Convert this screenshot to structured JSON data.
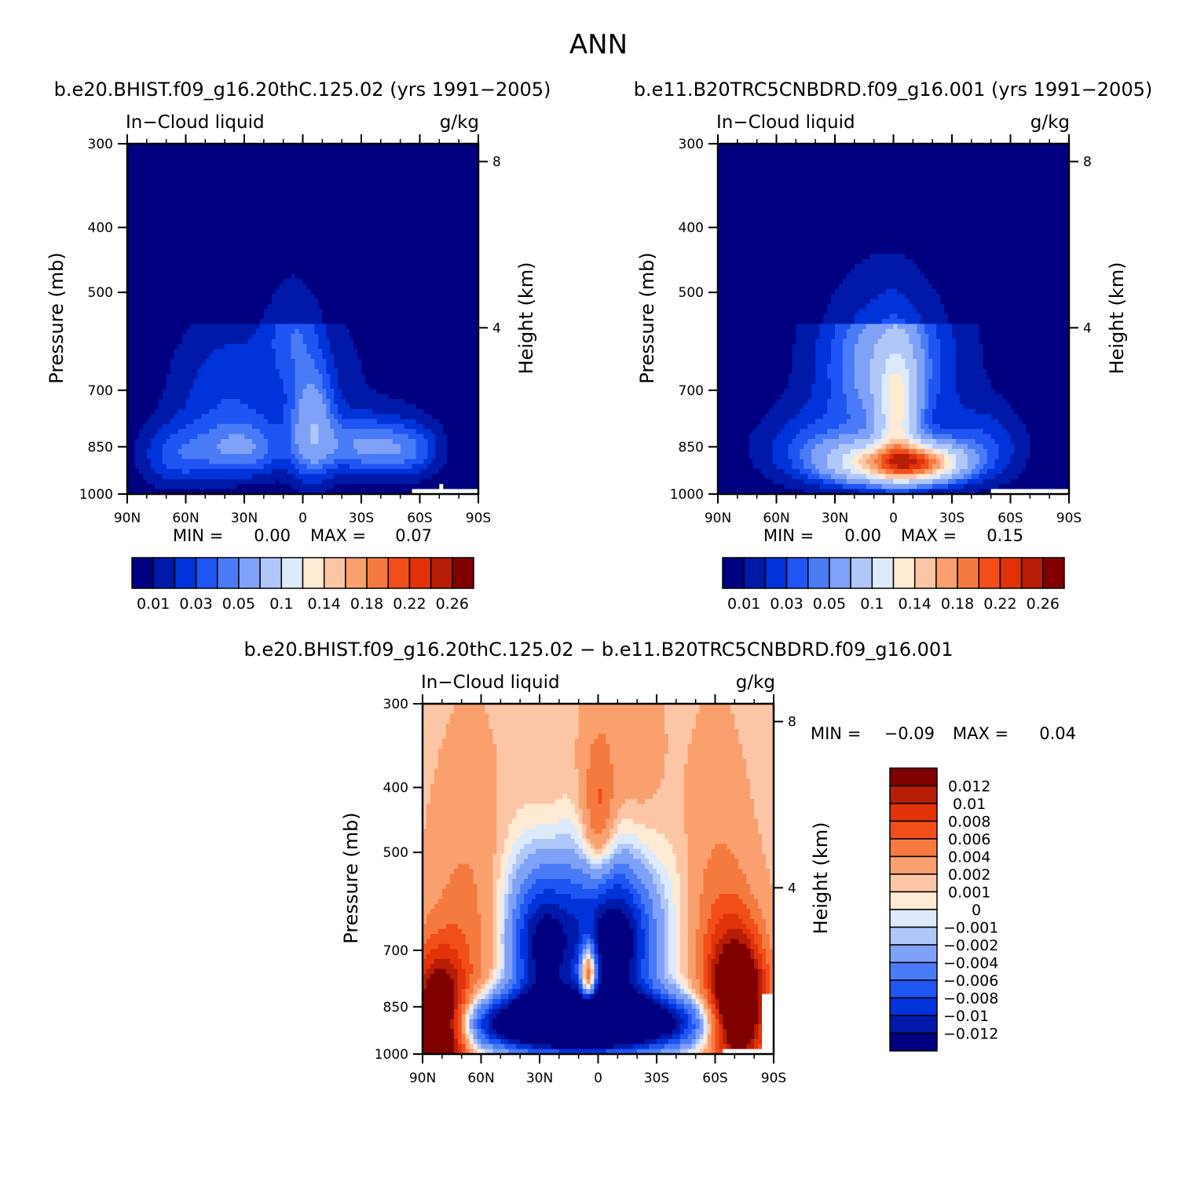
{
  "figure_title": "ANN",
  "colors": {
    "sequential": [
      "#000080",
      "#0019A8",
      "#0033D9",
      "#1F55F2",
      "#4A7BF7",
      "#7FA1F7",
      "#B0C7F9",
      "#DCEAFB",
      "#FFEAD4",
      "#FCC6A6",
      "#F9A06E",
      "#F57A3F",
      "#F24E1A",
      "#E1320A",
      "#B51E05",
      "#800000"
    ],
    "diverging": [
      "#000080",
      "#0019A8",
      "#0033D9",
      "#1F55F2",
      "#4A7BF7",
      "#7FA1F7",
      "#B0C7F9",
      "#DCEAFB",
      "#FFEAD4",
      "#FCC6A6",
      "#F9A06E",
      "#F57A3F",
      "#F24E1A",
      "#E1320A",
      "#B51E05",
      "#800000"
    ]
  },
  "chart_data": [
    {
      "type": "contour",
      "title": "b.e20.BHIST.f09_g16.20thC.125.02 (yrs 1991−2005)",
      "left_string": "In−Cloud liquid",
      "right_string": "g/kg",
      "ylabel": "Pressure (mb)",
      "ylabel_right": "Height (km)",
      "y_ticks": [
        "300",
        "400",
        "500",
        "700",
        "850",
        "1000"
      ],
      "y_tick_values": [
        300,
        400,
        500,
        700,
        850,
        1000
      ],
      "right_ticks": [
        "8",
        "4"
      ],
      "right_tick_values": [
        8,
        4
      ],
      "x_ticks": [
        "90N",
        "60N",
        "30N",
        "0",
        "30S",
        "60S",
        "90S"
      ],
      "x_tick_values": [
        90,
        60,
        30,
        0,
        -30,
        -60,
        -90
      ],
      "ylim": [
        300,
        1000
      ],
      "xlim": [
        90,
        -90
      ],
      "min_label": "MIN =",
      "min_value": "0.00",
      "max_label": "MAX =",
      "max_value": "0.07",
      "colorbar_labels": [
        "0.01",
        "0.03",
        "0.05",
        "0.1",
        "0.14",
        "0.18",
        "0.22",
        "0.26"
      ],
      "contour_levels": [
        0.005,
        0.01,
        0.02,
        0.03,
        0.04,
        0.05,
        0.07,
        0.1,
        0.12,
        0.14,
        0.16,
        0.18,
        0.2,
        0.22,
        0.24,
        0.26
      ]
    },
    {
      "type": "contour",
      "title": "b.e11.B20TRC5CNBDRD.f09_g16.001 (yrs 1991−2005)",
      "left_string": "In−Cloud liquid",
      "right_string": "g/kg",
      "ylabel": "Pressure (mb)",
      "ylabel_right": "Height (km)",
      "y_ticks": [
        "300",
        "400",
        "500",
        "700",
        "850",
        "1000"
      ],
      "y_tick_values": [
        300,
        400,
        500,
        700,
        850,
        1000
      ],
      "right_ticks": [
        "8",
        "4"
      ],
      "right_tick_values": [
        8,
        4
      ],
      "x_ticks": [
        "90N",
        "60N",
        "30N",
        "0",
        "30S",
        "60S",
        "90S"
      ],
      "x_tick_values": [
        90,
        60,
        30,
        0,
        -30,
        -60,
        -90
      ],
      "ylim": [
        300,
        1000
      ],
      "xlim": [
        90,
        -90
      ],
      "min_label": "MIN =",
      "min_value": "0.00",
      "max_label": "MAX =",
      "max_value": "0.15",
      "colorbar_labels": [
        "0.01",
        "0.03",
        "0.05",
        "0.1",
        "0.14",
        "0.18",
        "0.22",
        "0.26"
      ],
      "contour_levels": [
        0.005,
        0.01,
        0.02,
        0.03,
        0.04,
        0.05,
        0.07,
        0.1,
        0.12,
        0.14,
        0.16,
        0.18,
        0.2,
        0.22,
        0.24,
        0.26
      ]
    },
    {
      "type": "contour",
      "title": "b.e20.BHIST.f09_g16.20thC.125.02 − b.e11.B20TRC5CNBDRD.f09_g16.001",
      "left_string": "In−Cloud liquid",
      "right_string": "g/kg",
      "ylabel": "Pressure (mb)",
      "ylabel_right": "Height (km)",
      "y_ticks": [
        "300",
        "400",
        "500",
        "700",
        "850",
        "1000"
      ],
      "y_tick_values": [
        300,
        400,
        500,
        700,
        850,
        1000
      ],
      "right_ticks": [
        "8",
        "4"
      ],
      "right_tick_values": [
        8,
        4
      ],
      "x_ticks": [
        "90N",
        "60N",
        "30N",
        "0",
        "30S",
        "60S",
        "90S"
      ],
      "x_tick_values": [
        90,
        60,
        30,
        0,
        -30,
        -60,
        -90
      ],
      "ylim": [
        300,
        1000
      ],
      "xlim": [
        90,
        -90
      ],
      "min_label": "MIN =",
      "min_value": "−0.09",
      "max_label": "MAX =",
      "max_value": "0.04",
      "colorbar_labels": [
        "0.012",
        "0.01",
        "0.008",
        "0.006",
        "0.004",
        "0.002",
        "0.001",
        "0",
        "−0.001",
        "−0.002",
        "−0.004",
        "−0.006",
        "−0.008",
        "−0.01",
        "−0.012"
      ],
      "contour_levels": [
        -0.012,
        -0.01,
        -0.008,
        -0.006,
        -0.004,
        -0.002,
        -0.001,
        0,
        0.001,
        0.002,
        0.004,
        0.006,
        0.008,
        0.01,
        0.012
      ]
    }
  ]
}
